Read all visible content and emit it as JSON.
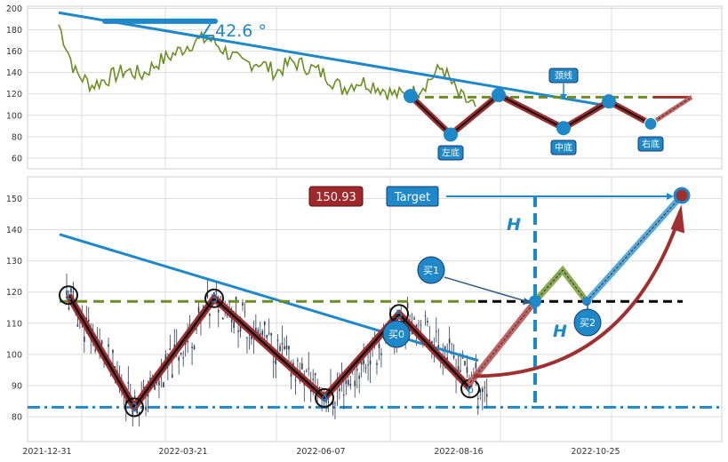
{
  "colors": {
    "price": "#6b8e23",
    "trend": "#1e88c8",
    "zigzag": "#a03030",
    "neckline": "#6b8e23",
    "target_line": "#000000",
    "support": "#1e88c8",
    "badge_blue": "#1e88c8",
    "badge_red": "#a0282c",
    "candle": "#2f3b55"
  },
  "chart_data": [
    {
      "type": "line",
      "panel": "top",
      "ylim": [
        50,
        202
      ],
      "y_ticks": [
        60,
        80,
        100,
        120,
        140,
        160,
        180,
        200
      ],
      "grid": true,
      "angle_label": "∠42.6 °",
      "series": [
        {
          "x": [
            0,
            7,
            14,
            21,
            28,
            35,
            42,
            49,
            56,
            63,
            70,
            77,
            84,
            91,
            98,
            105,
            112,
            119,
            126,
            133,
            140,
            147,
            154,
            161,
            168,
            175
          ],
          "values": [
            185,
            140,
            128,
            135,
            142,
            138,
            150,
            158,
            168,
            172,
            160,
            148,
            150,
            140,
            150,
            145,
            138,
            125,
            132,
            128,
            120,
            118,
            130,
            145,
            118,
            108
          ]
        }
      ],
      "trend_line": {
        "x": [
          0,
          255
        ],
        "y": [
          196,
          108
        ]
      },
      "zigzag": {
        "x": [
          159,
          174,
          190,
          206,
          222,
          238
        ],
        "y": [
          118,
          82,
          119,
          88,
          113,
          92
        ]
      },
      "neckline_y": 117,
      "labels": [
        "左底",
        "中底",
        "右底",
        "颈线"
      ]
    },
    {
      "type": "line",
      "panel": "bottom",
      "ylim": [
        72,
        157
      ],
      "y_ticks": [
        80,
        90,
        100,
        110,
        120,
        130,
        140,
        150
      ],
      "x_tick_labels": [
        "2021-12-31",
        "2022-03-21",
        "2022-06-07",
        "2022-08-16",
        "2022-10-25"
      ],
      "grid": true,
      "pattern_points": {
        "x": [
          0,
          29,
          62,
          108,
          141,
          170
        ],
        "y": [
          119,
          83,
          118,
          86,
          113,
          89
        ],
        "labels": [
          "1",
          "2",
          "3",
          "4",
          "5",
          "6"
        ]
      },
      "neckline_y": 117,
      "support_y": 83,
      "trend_line": {
        "x": [
          0,
          178
        ],
        "y": [
          138.5,
          98
        ]
      },
      "target_value": "150.93",
      "target_label": "Target",
      "height_label": "H",
      "buy_labels": [
        "买0",
        "买1",
        "买2"
      ]
    }
  ]
}
